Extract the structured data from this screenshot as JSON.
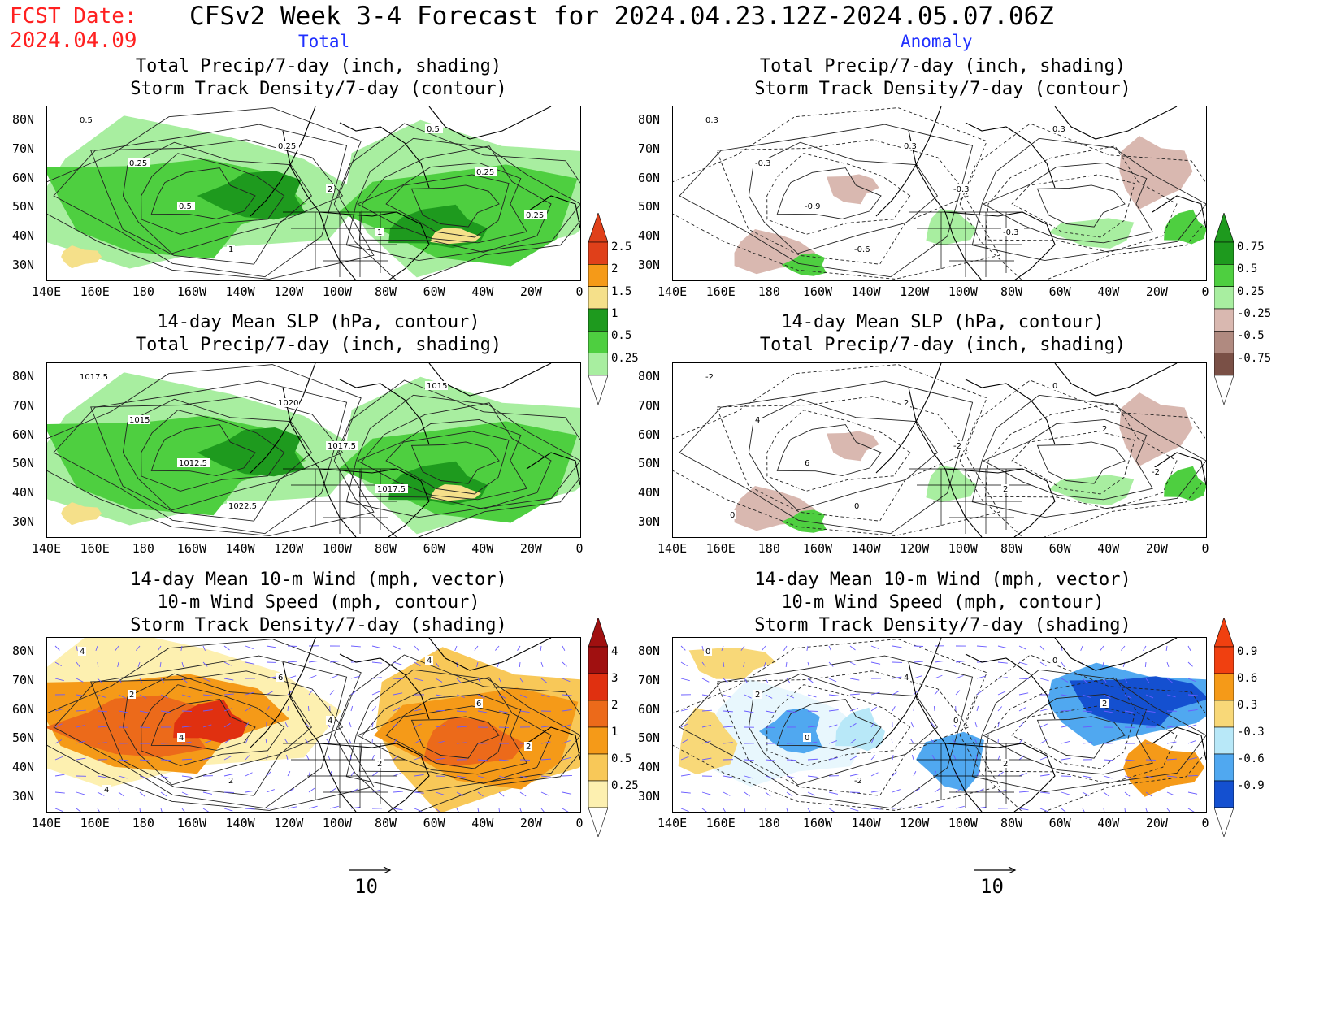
{
  "header": {
    "fcst_label": "FCST Date:",
    "fcst_date": "2024.04.09",
    "title": "CFSv2 Week 3-4 Forecast for 2024.04.23.12Z-2024.05.07.06Z",
    "col_total": "Total",
    "col_anomaly": "Anomaly"
  },
  "panels": {
    "p1": {
      "line1": "Total Precip/7-day (inch, shading)",
      "line2": "Storm Track Density/7-day (contour)"
    },
    "p2": {
      "line1": "Total Precip/7-day (inch, shading)",
      "line2": "Storm Track Density/7-day (contour)"
    },
    "p3": {
      "line1": "14-day Mean SLP (hPa, contour)",
      "line2": "Total Precip/7-day (inch, shading)"
    },
    "p4": {
      "line1": "14-day Mean SLP (hPa, contour)",
      "line2": "Total Precip/7-day (inch, shading)"
    },
    "p5": {
      "line1": "14-day Mean 10-m Wind (mph, vector)",
      "line2": "10-m Wind Speed (mph, contour)",
      "line3": "Storm Track Density/7-day (shading)"
    },
    "p6": {
      "line1": "14-day Mean 10-m Wind (mph, vector)",
      "line2": "10-m Wind Speed (mph, contour)",
      "line3": "Storm Track Density/7-day (shading)"
    }
  },
  "axes": {
    "lon_ticks": [
      "140E",
      "160E",
      "180",
      "160W",
      "140W",
      "120W",
      "100W",
      "80W",
      "60W",
      "40W",
      "20W",
      "0"
    ],
    "lat_ticks": [
      "80N",
      "70N",
      "60N",
      "50N",
      "40N",
      "30N"
    ]
  },
  "colorbars": {
    "precip_total": {
      "labels": [
        "2.5",
        "2",
        "1.5",
        "1",
        "0.5",
        "0.25"
      ],
      "colors": [
        "#e0401a",
        "#f59a18",
        "#f5e08a",
        "#1e9a1e",
        "#4ecf40",
        "#a8eea0"
      ]
    },
    "precip_anom": {
      "labels": [
        "0.75",
        "0.5",
        "0.25",
        "-0.25",
        "-0.5",
        "-0.75"
      ],
      "colors": [
        "#1e9a1e",
        "#4ecf40",
        "#a8eea0",
        "#d9b8b0",
        "#b08a80",
        "#7a5046"
      ]
    },
    "storm_total": {
      "labels": [
        "4",
        "3",
        "2",
        "1",
        "0.5",
        "0.25"
      ],
      "colors": [
        "#a01010",
        "#e03010",
        "#ec6a1a",
        "#f59a18",
        "#f8c858",
        "#fdf0b0"
      ]
    },
    "storm_anom": {
      "labels": [
        "0.9",
        "0.6",
        "0.3",
        "-0.3",
        "-0.6",
        "-0.9"
      ],
      "colors": [
        "#f04010",
        "#f59a18",
        "#f8d878",
        "#b8e8f8",
        "#50a8f0",
        "#1450d0"
      ]
    }
  },
  "contour_labels": {
    "p1": [
      "0.5",
      "0.25",
      "0.5",
      "1",
      "0.25",
      "2",
      "1",
      "0.5",
      "0.25",
      "0.25"
    ],
    "p2": [
      "0.3",
      "-0.3",
      "-0.9",
      "-0.6",
      "0.3",
      "-0.3",
      "-0.3",
      "0.3"
    ],
    "p3": [
      "1017.5",
      "1015",
      "1012.5",
      "1022.5",
      "1020",
      "1017.5",
      "1017.5",
      "1015"
    ],
    "p4": [
      "-2",
      "4",
      "6",
      "0",
      "2",
      "-2",
      "2",
      "0",
      "2",
      "-2",
      "0"
    ],
    "p5": [
      "4",
      "2",
      "4",
      "2",
      "6",
      "4",
      "2",
      "4",
      "6",
      "2",
      "4"
    ],
    "p6": [
      "0",
      "2",
      "0",
      "-2",
      "4",
      "0",
      "2",
      "0",
      "2"
    ]
  },
  "vector_scale": {
    "left": "10",
    "right": "10"
  }
}
